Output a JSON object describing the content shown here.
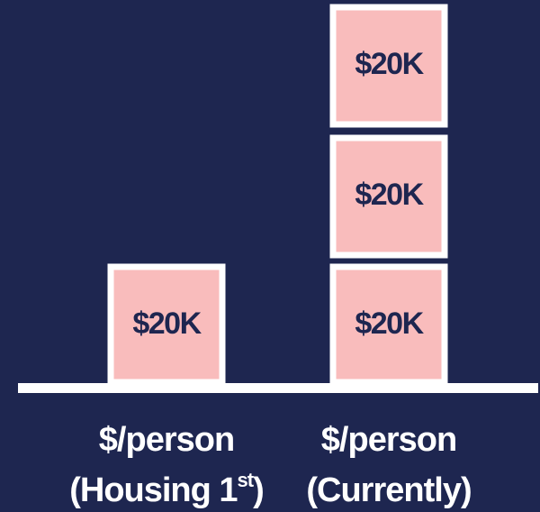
{
  "columns": [
    {
      "line1": "$/person",
      "line2": "(Housing 1",
      "superscript": "st",
      "line2_end": ")",
      "blocks": [
        "$20K"
      ]
    },
    {
      "line1": "$/person",
      "line2": "(Currently)",
      "blocks": [
        "$20K",
        "$20K",
        "$20K"
      ]
    }
  ]
}
